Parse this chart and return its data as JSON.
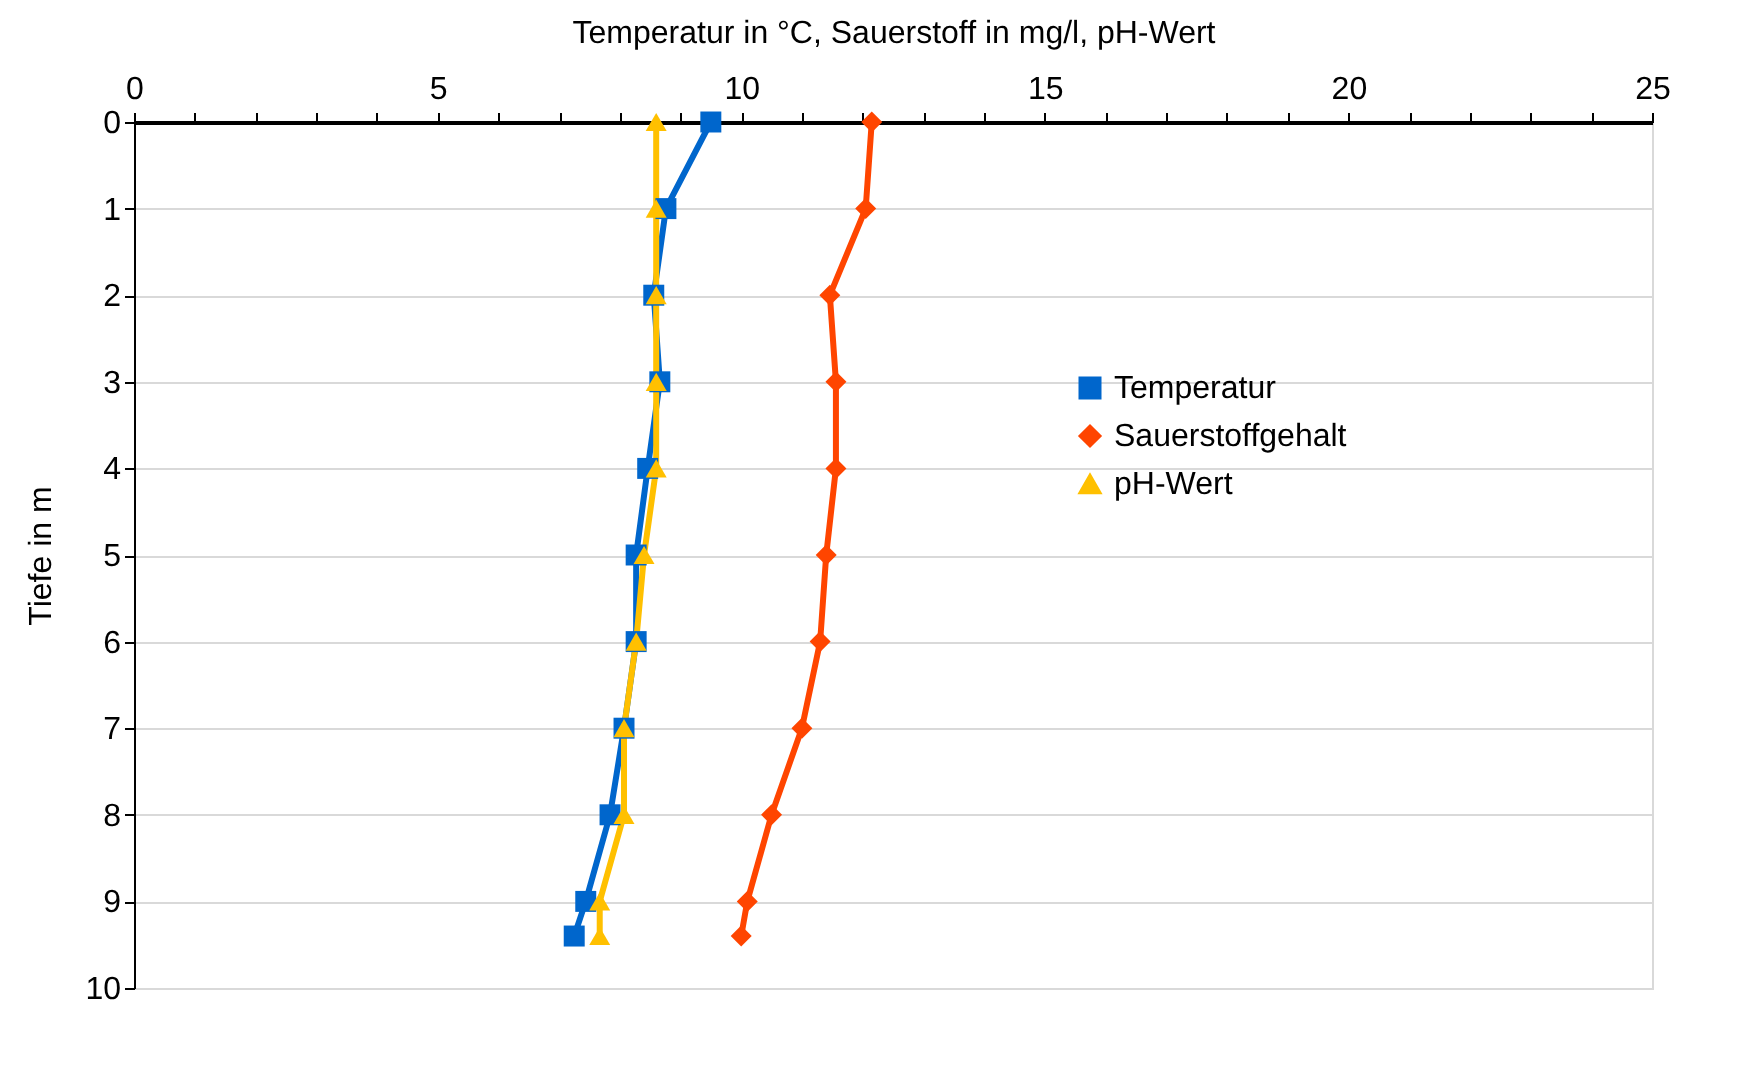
{
  "chart_data": {
    "type": "line",
    "xlabel": "Temperatur in °C, Sauerstoff in mg/l, pH-Wert",
    "ylabel": "Tiefe in m",
    "xlim": [
      0,
      25
    ],
    "xticks": [
      0,
      {
        "value": 1,
        "label": null
      },
      {
        "value": 2,
        "label": null
      },
      {
        "value": 3,
        "label": null
      },
      {
        "value": 4,
        "label": null
      },
      5,
      {
        "value": 6,
        "label": null
      },
      {
        "value": 7,
        "label": null
      },
      {
        "value": 8,
        "label": null
      },
      {
        "value": 9,
        "label": null
      },
      10,
      {
        "value": 11,
        "label": null
      },
      {
        "value": 12,
        "label": null
      },
      {
        "value": 13,
        "label": null
      },
      {
        "value": 14,
        "label": null
      },
      15,
      {
        "value": 16,
        "label": null
      },
      {
        "value": 17,
        "label": null
      },
      {
        "value": 18,
        "label": null
      },
      {
        "value": 19,
        "label": null
      },
      20,
      {
        "value": 21,
        "label": null
      },
      {
        "value": 22,
        "label": null
      },
      {
        "value": 23,
        "label": null
      },
      {
        "value": 24,
        "label": null
      },
      25
    ],
    "ylim": [
      10,
      0
    ],
    "yticks": [
      0,
      1,
      2,
      3,
      4,
      5,
      6,
      7,
      8,
      9,
      10
    ],
    "grid": "y",
    "legend": "right",
    "series": [
      {
        "name": "Temperatur",
        "color": "#0066cc",
        "marker": "square",
        "x": [
          9.5,
          8.76,
          8.56,
          8.66,
          8.46,
          8.27,
          8.27,
          8.07,
          7.84,
          7.44,
          7.25
        ],
        "values": [
          0,
          1,
          2,
          3,
          4,
          5,
          6,
          7,
          8,
          9,
          9.4
        ]
      },
      {
        "name": "Sauerstoffgehalt",
        "color": "#ff4500",
        "marker": "diamond",
        "x": [
          12.15,
          12.05,
          11.46,
          11.56,
          11.56,
          11.4,
          11.3,
          11.0,
          10.5,
          10.1,
          10.0
        ],
        "values": [
          0,
          1,
          2,
          3,
          4,
          5,
          6,
          7,
          8,
          9,
          9.4
        ]
      },
      {
        "name": "pH-Wert",
        "color": "#ffc000",
        "marker": "triangle",
        "x": [
          8.6,
          8.6,
          8.6,
          8.6,
          8.6,
          8.4,
          8.27,
          8.07,
          8.07,
          7.67,
          7.67
        ],
        "values": [
          0,
          1,
          2,
          3,
          4,
          5,
          6,
          7,
          8,
          9,
          9.4
        ]
      }
    ]
  }
}
